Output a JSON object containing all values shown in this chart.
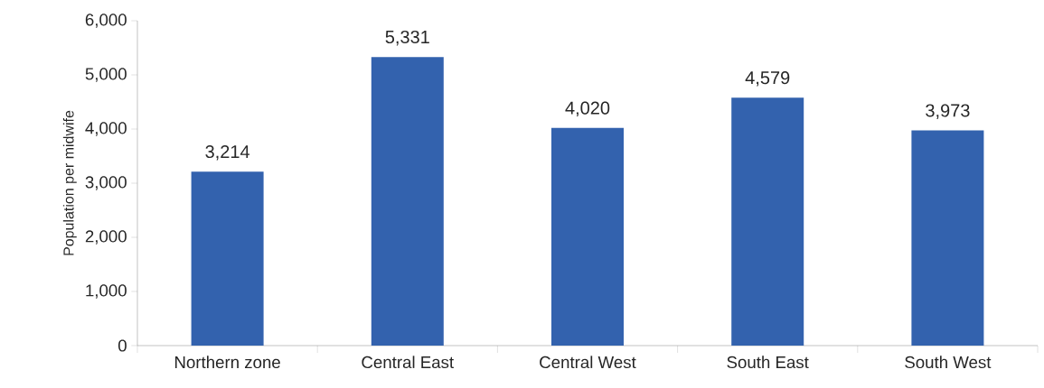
{
  "chart_data": {
    "type": "bar",
    "ylabel": "Population per midwife",
    "categories": [
      "Northern zone",
      "Central East",
      "Central West",
      "South East",
      "South West"
    ],
    "values": [
      3214,
      5331,
      4020,
      4579,
      3973
    ],
    "value_labels": [
      "3,214",
      "5,331",
      "4,020",
      "4,579",
      "3,973"
    ],
    "color": "#3362ae",
    "ylim": [
      0,
      6000
    ],
    "yticks": [
      0,
      {
        "value": 1000,
        "label": "1,000"
      },
      {
        "value": 2000,
        "label": "2,000"
      },
      {
        "value": 3000,
        "label": "3,000"
      },
      {
        "value": 4000,
        "label": "4,000"
      },
      {
        "value": 5000,
        "label": "5,000"
      },
      {
        "value": 6000,
        "label": "6,000"
      }
    ],
    "grid": false
  }
}
